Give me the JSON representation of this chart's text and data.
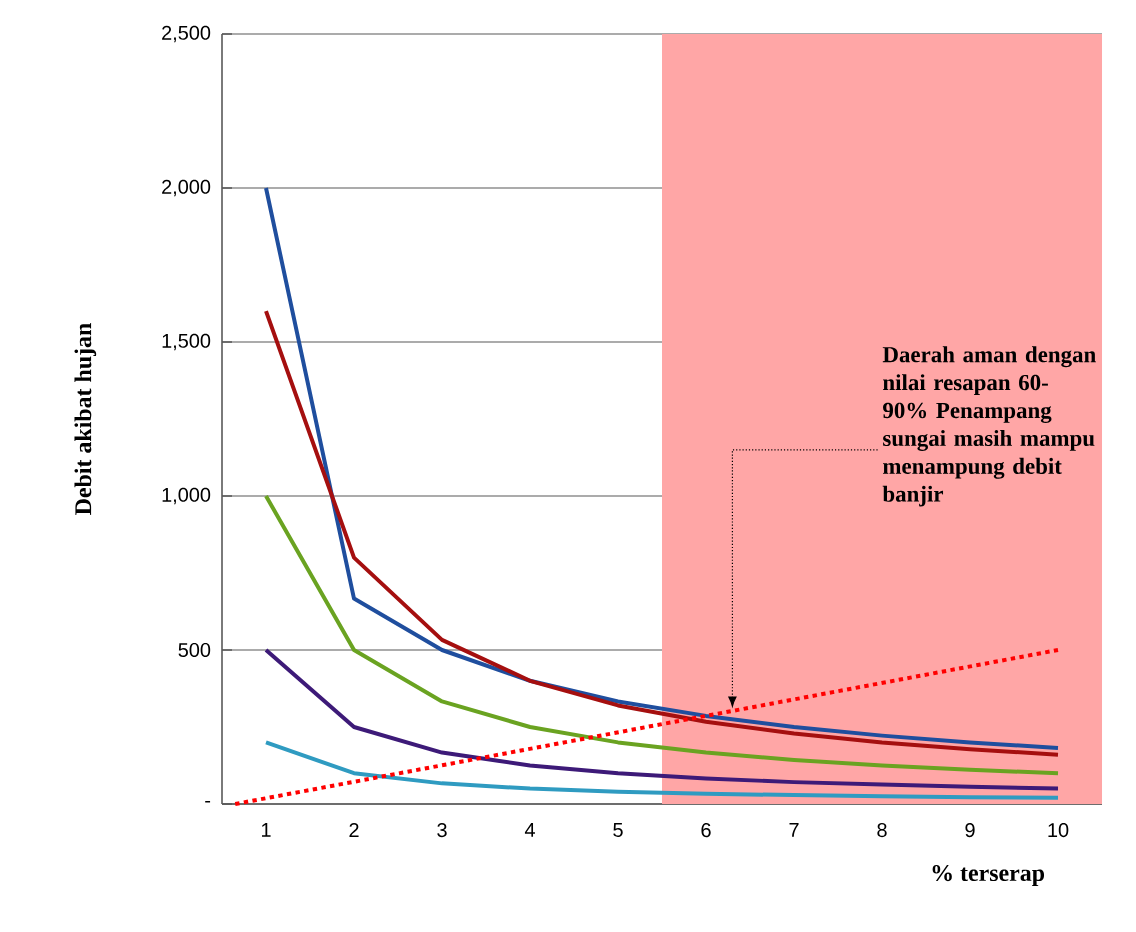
{
  "chart_data": {
    "type": "line",
    "xlabel": "% terserap",
    "ylabel": "Debit akibat hujan",
    "x": [
      1,
      2,
      3,
      4,
      5,
      6,
      7,
      8,
      9,
      10
    ],
    "xlim": [
      0.5,
      10.5
    ],
    "xticks": [
      1,
      2,
      3,
      4,
      5,
      6,
      7,
      8,
      9,
      10
    ],
    "ylim": [
      0,
      2500
    ],
    "yticks": [
      {
        "value": 0,
        "label": "-"
      },
      500,
      {
        "value": 1000,
        "label": "1,000"
      },
      {
        "value": 1500,
        "label": "1,500"
      },
      {
        "value": 2000,
        "label": "2,000"
      },
      {
        "value": 2500,
        "label": "2,500"
      }
    ],
    "grid": "y",
    "series": [
      {
        "color": "#1f4e9e",
        "values": [
          2000,
          667,
          500,
          400,
          333,
          286,
          250,
          222,
          200,
          182
        ]
      },
      {
        "color": "#a50f0f",
        "values": [
          1600,
          800,
          533,
          400,
          320,
          267,
          229,
          200,
          178,
          160
        ]
      },
      {
        "color": "#6aa321",
        "values": [
          1000,
          500,
          333,
          250,
          200,
          167,
          143,
          125,
          111,
          100
        ]
      },
      {
        "color": "#3d1a78",
        "values": [
          500,
          250,
          167,
          125,
          100,
          83,
          71,
          63,
          56,
          50
        ]
      },
      {
        "color": "#2f9bc1",
        "values": [
          200,
          100,
          67,
          50,
          40,
          33,
          29,
          25,
          22,
          20
        ]
      },
      {
        "type": "line",
        "color": "#ff0000",
        "line_style": "dotted",
        "x": [
          0.65,
          10
        ],
        "values": [
          0,
          500
        ]
      }
    ],
    "bands": [
      {
        "axis": "x",
        "from": 5.5,
        "to": 10.5,
        "color": "#ffa6a6"
      }
    ],
    "annotations": [
      {
        "text": "Daerah aman dengan nilai resapan 60-90% Penampang sungai masih mampu menampung debit banjir",
        "x": 6.3,
        "y": 310
      }
    ]
  }
}
